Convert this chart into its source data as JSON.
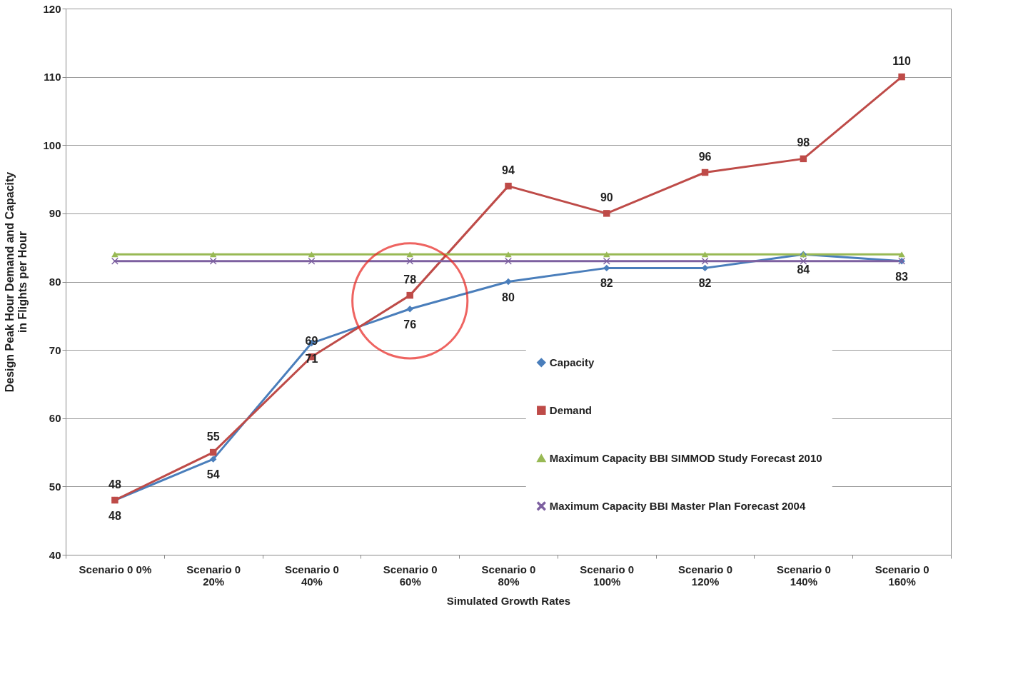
{
  "chart_data": {
    "type": "line",
    "xlabel": "Simulated Growth Rates",
    "ylabel": "Design Peak Hour Demand and Capacity in Flights per Hour",
    "categories": [
      "Scenario 0 0%",
      "Scenario 0 20%",
      "Scenario 0 40%",
      "Scenario 0 60%",
      "Scenario 0 80%",
      "Scenario 0 100%",
      "Scenario 0 120%",
      "Scenario 0 140%",
      "Scenario 0 160%"
    ],
    "series": [
      {
        "name": "Capacity",
        "color": "#4a7ebb",
        "marker": "diamond",
        "values": [
          48,
          54,
          71,
          76,
          80,
          82,
          82,
          84,
          83
        ],
        "value_labels": [
          "48",
          "54",
          "71",
          "76",
          "80",
          "82",
          "82",
          "84",
          "83"
        ]
      },
      {
        "name": "Demand",
        "color": "#be4b48",
        "marker": "square",
        "values": [
          48,
          55,
          69,
          78,
          94,
          90,
          96,
          98,
          110
        ],
        "value_labels": [
          "48",
          "55",
          "69",
          "78",
          "94",
          "90",
          "96",
          "98",
          "110"
        ]
      },
      {
        "name": "Maximum Capacity BBI SIMMOD Study Forecast 2010",
        "color": "#98b954",
        "marker": "triangle",
        "values": [
          84,
          84,
          84,
          84,
          84,
          84,
          84,
          84,
          84
        ]
      },
      {
        "name": "Maximum Capacity BBI Master Plan Forecast 2004",
        "color": "#7d60a0",
        "marker": "cross",
        "values": [
          83,
          83,
          83,
          83,
          83,
          83,
          83,
          83,
          83
        ]
      }
    ],
    "ylim": [
      40,
      120
    ],
    "yticks": [
      40,
      50,
      60,
      70,
      80,
      90,
      100,
      110,
      120
    ],
    "grid": "y",
    "legend": "right",
    "line_style": "solid"
  }
}
